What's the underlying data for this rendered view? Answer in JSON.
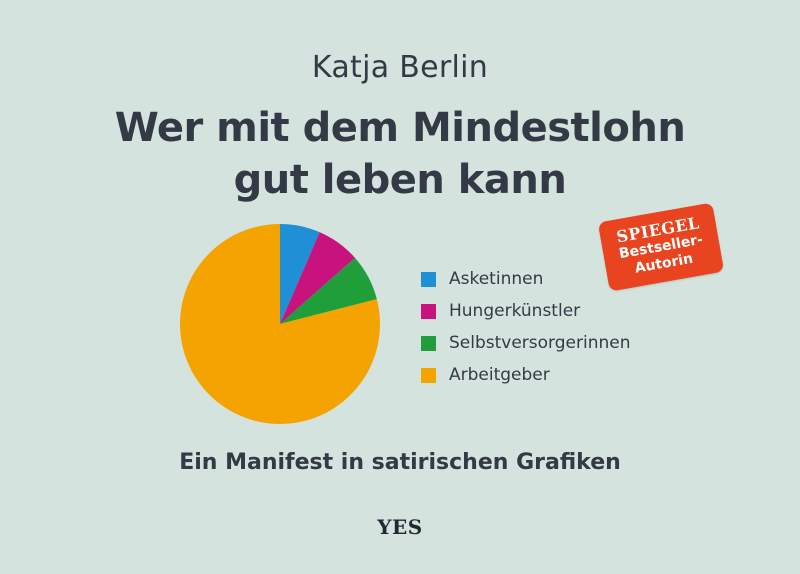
{
  "author": "Katja Berlin",
  "title_lines": [
    "Wer mit dem Mindestlohn",
    "gut leben kann"
  ],
  "subtitle": "Ein Manifest in satirischen Grafiken",
  "publisher": "YES",
  "badge": {
    "brand": "SPIEGEL",
    "line1": "Bestseller-",
    "line2": "Autorin",
    "color": "#e8441f"
  },
  "colors": {
    "background": "#d5e3df",
    "text": "#333a45"
  },
  "chart_data": {
    "type": "pie",
    "categories": [
      "Asketinnen",
      "Hungerkünstler",
      "Selbstversorgerinnen",
      "Arbeitgeber"
    ],
    "values": [
      6.5,
      7,
      7.5,
      79
    ],
    "colors": [
      "#1f8fd6",
      "#c8137e",
      "#1f9e3a",
      "#f5a300"
    ],
    "start_angle_deg": 0,
    "direction": "clockwise",
    "legend_position": "right"
  }
}
